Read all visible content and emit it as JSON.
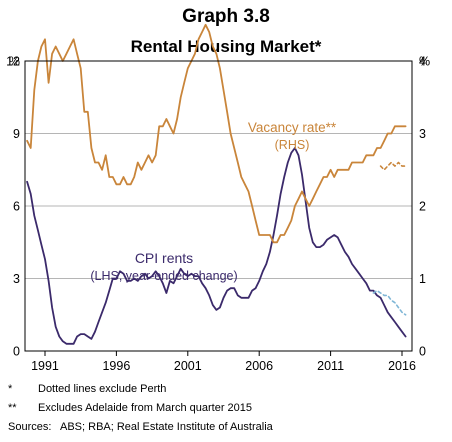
{
  "title": "Graph 3.8",
  "subtitle": "Rental Housing Market*",
  "notes": [
    {
      "mark": "*",
      "text": "Dotted lines exclude Perth"
    },
    {
      "mark": "**",
      "text": "Excludes Adelaide from March quarter 2015"
    }
  ],
  "sources": {
    "label": "Sources:",
    "text": "ABS; RBA; Real Estate Institute of Australia"
  },
  "colors": {
    "vacancy": "#c9853a",
    "cpi": "#3b2a6b",
    "cpi_excl_perth": "#7fb6d6",
    "grid": "#b5b5b5"
  },
  "chart_data": {
    "type": "line",
    "xlim": [
      1989.6,
      2016.7
    ],
    "x_ticks": [
      1991,
      1996,
      2001,
      2006,
      2011,
      2016
    ],
    "left_axis": {
      "unit": "%",
      "ylim": [
        0,
        12
      ],
      "ticks": [
        0,
        3,
        6,
        9,
        12
      ]
    },
    "right_axis": {
      "unit": "%",
      "ylim": [
        0,
        4
      ],
      "ticks": [
        0,
        1,
        2,
        3,
        4
      ]
    },
    "annotations": [
      {
        "series": "vacancy",
        "lines": [
          "Vacancy rate**",
          "(RHS)"
        ]
      },
      {
        "series": "cpi",
        "lines": [
          "CPI rents",
          "(LHS, year-ended change)"
        ]
      }
    ],
    "series": [
      {
        "id": "cpi",
        "axis": "left",
        "style": "solid",
        "x": [
          1989.75,
          1990.0,
          1990.25,
          1990.5,
          1990.75,
          1991.0,
          1991.25,
          1991.5,
          1991.75,
          1992.0,
          1992.25,
          1992.5,
          1992.75,
          1993.0,
          1993.25,
          1993.5,
          1993.75,
          1994.0,
          1994.25,
          1994.5,
          1994.75,
          1995.0,
          1995.25,
          1995.5,
          1995.75,
          1996.0,
          1996.25,
          1996.5,
          1996.75,
          1997.0,
          1997.25,
          1997.5,
          1997.75,
          1998.0,
          1998.25,
          1998.5,
          1998.75,
          1999.0,
          1999.25,
          1999.5,
          1999.75,
          2000.0,
          2000.25,
          2000.5,
          2000.75,
          2001.0,
          2001.25,
          2001.5,
          2001.75,
          2002.0,
          2002.25,
          2002.5,
          2002.75,
          2003.0,
          2003.25,
          2003.5,
          2003.75,
          2004.0,
          2004.25,
          2004.5,
          2004.75,
          2005.0,
          2005.25,
          2005.5,
          2005.75,
          2006.0,
          2006.25,
          2006.5,
          2006.75,
          2007.0,
          2007.25,
          2007.5,
          2007.75,
          2008.0,
          2008.25,
          2008.5,
          2008.75,
          2009.0,
          2009.25,
          2009.5,
          2009.75,
          2010.0,
          2010.25,
          2010.5,
          2010.75,
          2011.0,
          2011.25,
          2011.5,
          2011.75,
          2012.0,
          2012.25,
          2012.5,
          2012.75,
          2013.0,
          2013.25,
          2013.5,
          2013.75,
          2014.0,
          2014.25,
          2014.5,
          2014.75,
          2015.0,
          2015.25,
          2015.5,
          2015.75,
          2016.0,
          2016.25
        ],
        "y": [
          7.0,
          6.5,
          5.6,
          5.0,
          4.4,
          3.8,
          2.9,
          1.8,
          1.0,
          0.6,
          0.4,
          0.3,
          0.3,
          0.3,
          0.6,
          0.7,
          0.7,
          0.6,
          0.5,
          0.8,
          1.2,
          1.6,
          2.0,
          2.5,
          3.0,
          3.0,
          3.3,
          3.2,
          2.9,
          2.9,
          3.0,
          2.9,
          3.1,
          3.2,
          3.0,
          3.1,
          3.3,
          3.1,
          2.8,
          2.4,
          2.9,
          2.8,
          3.1,
          3.4,
          3.2,
          3.1,
          3.2,
          3.1,
          3.1,
          2.8,
          2.6,
          2.3,
          1.9,
          1.7,
          1.8,
          2.2,
          2.5,
          2.6,
          2.6,
          2.3,
          2.2,
          2.2,
          2.2,
          2.5,
          2.6,
          2.9,
          3.3,
          3.6,
          4.1,
          4.8,
          5.6,
          6.5,
          7.2,
          7.8,
          8.2,
          8.4,
          8.1,
          7.3,
          6.2,
          5.1,
          4.5,
          4.3,
          4.3,
          4.4,
          4.6,
          4.7,
          4.8,
          4.7,
          4.4,
          4.1,
          3.9,
          3.6,
          3.4,
          3.2,
          3.0,
          2.8,
          2.5,
          2.5,
          2.3,
          2.2,
          1.9,
          1.6,
          1.4,
          1.2,
          1.0,
          0.8,
          0.6
        ]
      },
      {
        "id": "cpi_excl_perth",
        "axis": "left",
        "style": "dotted",
        "x": [
          2014.0,
          2014.25,
          2014.5,
          2014.75,
          2015.0,
          2015.25,
          2015.5,
          2015.75,
          2016.0,
          2016.25
        ],
        "y": [
          2.4,
          2.5,
          2.4,
          2.3,
          2.3,
          2.1,
          2.0,
          1.8,
          1.6,
          1.5
        ]
      },
      {
        "id": "vacancy",
        "axis": "right",
        "style": "solid",
        "x": [
          1989.75,
          1990.0,
          1990.25,
          1990.5,
          1990.75,
          1991.0,
          1991.25,
          1991.5,
          1991.75,
          1992.0,
          1992.25,
          1992.5,
          1992.75,
          1993.0,
          1993.25,
          1993.5,
          1993.75,
          1994.0,
          1994.25,
          1994.5,
          1994.75,
          1995.0,
          1995.25,
          1995.5,
          1995.75,
          1996.0,
          1996.25,
          1996.5,
          1996.75,
          1997.0,
          1997.25,
          1997.5,
          1997.75,
          1998.0,
          1998.25,
          1998.5,
          1998.75,
          1999.0,
          1999.25,
          1999.5,
          1999.75,
          2000.0,
          2000.25,
          2000.5,
          2000.75,
          2001.0,
          2001.25,
          2001.5,
          2001.75,
          2002.0,
          2002.25,
          2002.5,
          2002.75,
          2003.0,
          2003.25,
          2003.5,
          2003.75,
          2004.0,
          2004.25,
          2004.5,
          2004.75,
          2005.0,
          2005.25,
          2005.5,
          2005.75,
          2006.0,
          2006.25,
          2006.5,
          2006.75,
          2007.0,
          2007.25,
          2007.5,
          2007.75,
          2008.0,
          2008.25,
          2008.5,
          2008.75,
          2009.0,
          2009.25,
          2009.5,
          2009.75,
          2010.0,
          2010.25,
          2010.5,
          2010.75,
          2011.0,
          2011.25,
          2011.5,
          2011.75,
          2012.0,
          2012.25,
          2012.5,
          2012.75,
          2013.0,
          2013.25,
          2013.5,
          2013.75,
          2014.0,
          2014.25,
          2014.5,
          2014.75,
          2015.0,
          2015.25,
          2015.5,
          2015.75,
          2016.0,
          2016.25
        ],
        "y": [
          2.9,
          2.8,
          3.6,
          4.0,
          4.2,
          4.3,
          3.7,
          4.1,
          4.2,
          4.1,
          4.0,
          4.1,
          4.2,
          4.3,
          4.1,
          3.9,
          3.3,
          3.3,
          2.8,
          2.6,
          2.6,
          2.5,
          2.7,
          2.4,
          2.4,
          2.3,
          2.3,
          2.4,
          2.3,
          2.3,
          2.4,
          2.6,
          2.5,
          2.6,
          2.7,
          2.6,
          2.7,
          3.1,
          3.1,
          3.2,
          3.1,
          3.0,
          3.2,
          3.5,
          3.7,
          3.9,
          4.0,
          4.1,
          4.3,
          4.4,
          4.5,
          4.4,
          4.2,
          4.1,
          3.9,
          3.6,
          3.3,
          3.0,
          2.8,
          2.6,
          2.4,
          2.3,
          2.2,
          2.0,
          1.8,
          1.6,
          1.6,
          1.6,
          1.6,
          1.5,
          1.5,
          1.6,
          1.6,
          1.7,
          1.8,
          2.0,
          2.1,
          2.2,
          2.1,
          2.0,
          2.1,
          2.2,
          2.3,
          2.4,
          2.4,
          2.5,
          2.4,
          2.5,
          2.5,
          2.5,
          2.5,
          2.6,
          2.6,
          2.6,
          2.6,
          2.7,
          2.7,
          2.7,
          2.8,
          2.8,
          2.9,
          3.0,
          3.0,
          3.1,
          3.1,
          3.1,
          3.1
        ]
      },
      {
        "id": "vacancy_excl_perth",
        "axis": "right",
        "style": "dotted",
        "x": [
          2014.5,
          2014.75,
          2015.0,
          2015.25,
          2015.5,
          2015.75,
          2016.0,
          2016.25
        ],
        "y": [
          2.55,
          2.5,
          2.55,
          2.6,
          2.55,
          2.6,
          2.55,
          2.55
        ]
      }
    ]
  }
}
